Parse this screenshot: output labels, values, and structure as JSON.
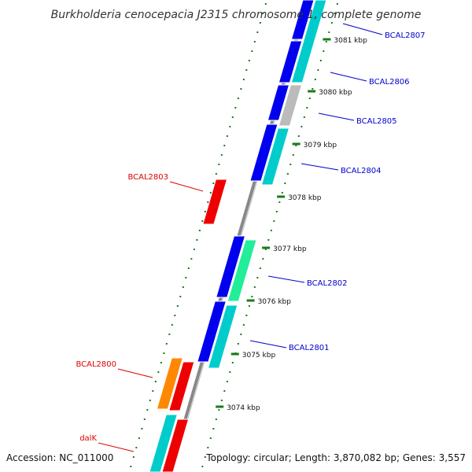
{
  "title": "Burkholderia cenocepacia J2315 chromosome 1, complete genome",
  "footer": {
    "accession": "Accession: NC_011000",
    "summary": "Topology: circular; Length: 3,870,082 bp; Genes: 3,557"
  },
  "colors": {
    "backbone": "#888888",
    "tick_dots": "#1a7a1a",
    "forward_blue": "#0000ee",
    "forward_cyan": "#00cccc",
    "gray": "#bbbbbb",
    "mint": "#22ee99",
    "reverse_red": "#ee0000",
    "orange": "#ff8800",
    "label_blue": "#0000cc",
    "label_red": "#dd0000"
  },
  "ticks": [
    {
      "label": "3081 kbp"
    },
    {
      "label": "3080 kbp"
    },
    {
      "label": "3079 kbp"
    },
    {
      "label": "3078 kbp"
    },
    {
      "label": "3077 kbp"
    },
    {
      "label": "3076 kbp"
    },
    {
      "label": "3075 kbp"
    },
    {
      "label": "3074 kbp"
    }
  ],
  "genes": [
    {
      "label": "BCAL2807",
      "strand": "forward",
      "color_key": "label_blue"
    },
    {
      "label": "BCAL2806",
      "strand": "forward",
      "color_key": "label_blue"
    },
    {
      "label": "BCAL2805",
      "strand": "forward",
      "color_key": "label_blue"
    },
    {
      "label": "BCAL2804",
      "strand": "forward",
      "color_key": "label_blue"
    },
    {
      "label": "BCAL2803",
      "strand": "reverse",
      "color_key": "label_red"
    },
    {
      "label": "BCAL2802",
      "strand": "forward",
      "color_key": "label_blue"
    },
    {
      "label": "BCAL2801",
      "strand": "forward",
      "color_key": "label_blue"
    },
    {
      "label": "BCAL2800",
      "strand": "reverse",
      "color_key": "label_red"
    },
    {
      "label": "dalK",
      "strand": "reverse",
      "color_key": "label_red"
    }
  ]
}
